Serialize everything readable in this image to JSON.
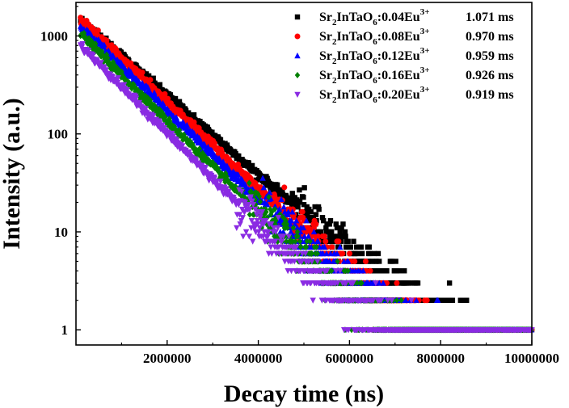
{
  "chart_data": {
    "type": "scatter",
    "title": "",
    "xlabel": "Decay time (ns)",
    "ylabel": "Intensity (a.u.)",
    "xscale": "linear",
    "yscale": "log",
    "xlim": [
      0,
      10000000
    ],
    "ylim": [
      0.7,
      2200
    ],
    "xticks": [
      2000000,
      4000000,
      6000000,
      8000000,
      10000000
    ],
    "xtick_labels": [
      "2000000",
      "4000000",
      "6000000",
      "8000000",
      "10000000"
    ],
    "yticks": [
      1,
      10,
      100,
      1000
    ],
    "ytick_labels": [
      "1",
      "10",
      "100",
      "1000"
    ],
    "grid": false,
    "legend_position": "top-right",
    "series": [
      {
        "name": "Sr2InTaO6:0.04Eu3+",
        "label_base": "Sr",
        "label_sub": "2",
        "label_mid": "InTaO",
        "label_sub2": "6",
        "label_ion": ":0.04Eu",
        "label_sup": "3+",
        "lifetime": "1.071 ms",
        "marker": "square",
        "color": "#000000",
        "I0": 1450,
        "tau_ns": 1071000,
        "floor": 0.55,
        "t_min": 100000
      },
      {
        "name": "Sr2InTaO6:0.08Eu3+",
        "label_base": "Sr",
        "label_sub": "2",
        "label_mid": "InTaO",
        "label_sub2": "6",
        "label_ion": ":0.08Eu",
        "label_sup": "3+",
        "lifetime": "0.970 ms",
        "marker": "circle",
        "color": "#ff0000",
        "I0": 1500,
        "tau_ns": 970000,
        "floor": 0.55,
        "t_min": 100000
      },
      {
        "name": "Sr2InTaO6:0.12Eu3+",
        "label_base": "Sr",
        "label_sub": "2",
        "label_mid": "InTaO",
        "label_sub2": "6",
        "label_ion": ":0.12Eu",
        "label_sup": "3+",
        "lifetime": "0.959 ms",
        "marker": "triangle-up",
        "color": "#0000ff",
        "I0": 1250,
        "tau_ns": 959000,
        "floor": 0.55,
        "t_min": 100000
      },
      {
        "name": "Sr2InTaO6:0.16Eu3+",
        "label_base": "Sr",
        "label_sub": "2",
        "label_mid": "InTaO",
        "label_sub2": "6",
        "label_ion": ":0.16Eu",
        "label_sup": "3+",
        "lifetime": "0.926 ms",
        "marker": "diamond",
        "color": "#008000",
        "I0": 1050,
        "tau_ns": 926000,
        "floor": 0.55,
        "t_min": 100000
      },
      {
        "name": "Sr2InTaO6:0.20Eu3+",
        "label_base": "Sr",
        "label_sub": "2",
        "label_mid": "InTaO",
        "label_sub2": "6",
        "label_ion": ":0.20Eu",
        "label_sup": "3+",
        "lifetime": "0.919 ms",
        "marker": "triangle-down",
        "color": "#8a2be2",
        "I0": 800,
        "tau_ns": 919000,
        "floor": 0.55,
        "t_min": 100000
      }
    ]
  }
}
